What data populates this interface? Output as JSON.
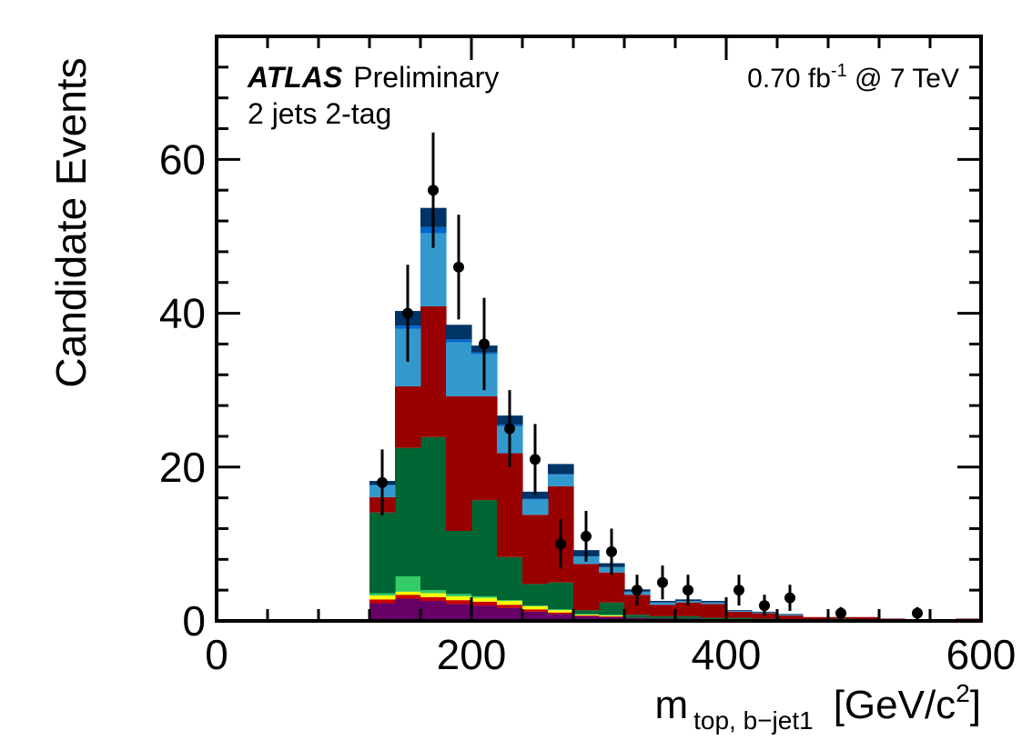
{
  "chart_data": {
    "type": "bar",
    "stacked": true,
    "bin_edges": [
      0,
      20,
      40,
      60,
      80,
      100,
      120,
      140,
      160,
      180,
      200,
      220,
      240,
      260,
      280,
      300,
      320,
      340,
      360,
      380,
      400,
      420,
      440,
      460,
      480,
      500,
      520,
      540,
      560,
      580,
      600
    ],
    "series": [
      {
        "name": "purple component",
        "color": "#660066",
        "values": [
          0,
          0,
          0,
          0,
          0,
          0,
          2.3,
          2.9,
          2.6,
          2.2,
          2.0,
          1.7,
          1.2,
          0.9,
          0.6,
          0.5,
          0.4,
          0.3,
          0.3,
          0.2,
          0.2,
          0.1,
          0.1,
          0.1,
          0.1,
          0.1,
          0,
          0,
          0,
          0
        ]
      },
      {
        "name": "red thin component",
        "color": "#cc0000",
        "values": [
          0,
          0,
          0,
          0,
          0,
          0,
          0.5,
          0.5,
          0.5,
          0.5,
          0.5,
          0.4,
          0.3,
          0.2,
          0.1,
          0.1,
          0,
          0,
          0,
          0,
          0,
          0,
          0,
          0,
          0,
          0,
          0,
          0,
          0,
          0
        ]
      },
      {
        "name": "yellow component",
        "color": "#ffff00",
        "values": [
          0,
          0,
          0,
          0,
          0,
          0,
          0.5,
          0.4,
          0.5,
          0.5,
          0.5,
          0.5,
          0.4,
          0.3,
          0.1,
          0.1,
          0,
          0,
          0,
          0,
          0,
          0,
          0,
          0,
          0,
          0,
          0,
          0,
          0,
          0
        ]
      },
      {
        "name": "light green component",
        "color": "#33cc66",
        "values": [
          0,
          0,
          0,
          0,
          0,
          0,
          0.3,
          2.0,
          0.4,
          0.3,
          0.2,
          0.1,
          0.1,
          0.1,
          0.1,
          0.1,
          0,
          0,
          0,
          0,
          0,
          0,
          0,
          0,
          0,
          0,
          0,
          0,
          0,
          0
        ]
      },
      {
        "name": "dark green component",
        "color": "#006633",
        "values": [
          0,
          0,
          0,
          0,
          0,
          0,
          10.5,
          16.7,
          19.9,
          8.2,
          12.5,
          5.6,
          2.8,
          3.5,
          0.5,
          1.6,
          0.4,
          0.3,
          0.3,
          0.2,
          0.2,
          0.2,
          0.1,
          0.1,
          0.2,
          0.1,
          0,
          0,
          0,
          0
        ]
      },
      {
        "name": "dark red component",
        "color": "#990000",
        "values": [
          0,
          0,
          0,
          0,
          0,
          0,
          2.0,
          8.0,
          17.0,
          17.5,
          13.5,
          13.5,
          9.0,
          12.5,
          6.0,
          3.9,
          2.6,
          1.5,
          1.8,
          1.8,
          0.8,
          0.7,
          0.5,
          0.3,
          0.2,
          0.3,
          0.3,
          0.2,
          0.2,
          0.3
        ]
      },
      {
        "name": "light blue component",
        "color": "#3399cc",
        "values": [
          0,
          0,
          0,
          0,
          0,
          0,
          1.5,
          7.5,
          9.5,
          7.0,
          5.5,
          3.5,
          2.0,
          1.5,
          1.0,
          0.7,
          0.4,
          0.3,
          0.2,
          0.2,
          0.1,
          0.1,
          0.1,
          0,
          0,
          0,
          0,
          0,
          0,
          0
        ]
      },
      {
        "name": "blue component",
        "color": "#0066cc",
        "values": [
          0,
          0,
          0,
          0,
          0,
          0,
          0.1,
          0.4,
          0.8,
          0.4,
          0.2,
          0.2,
          0.1,
          0.1,
          0,
          0,
          0,
          0,
          0,
          0,
          0,
          0,
          0,
          0,
          0,
          0,
          0,
          0,
          0,
          0
        ]
      },
      {
        "name": "dark navy component",
        "color": "#003366",
        "values": [
          0,
          0,
          0,
          0,
          0,
          0,
          0.5,
          1.9,
          2.5,
          1.9,
          0.9,
          1.2,
          0.9,
          1.3,
          0.8,
          0.5,
          0.3,
          0.2,
          0.2,
          0.2,
          0.1,
          0.1,
          0.1,
          0,
          0,
          0,
          0,
          0,
          0,
          0
        ]
      }
    ],
    "data_points": {
      "x": [
        130,
        150,
        170,
        190,
        210,
        230,
        250,
        270,
        290,
        310,
        330,
        350,
        370,
        410,
        430,
        450,
        490,
        550
      ],
      "y": [
        18,
        40,
        56,
        46,
        36,
        25,
        21,
        10,
        11,
        9,
        4,
        5,
        4,
        4,
        2,
        3,
        1,
        1
      ],
      "err": [
        4.3,
        6.3,
        7.5,
        6.8,
        6.0,
        5.0,
        4.6,
        3.2,
        3.3,
        3.0,
        2.0,
        2.2,
        2.0,
        2.0,
        1.4,
        1.7,
        0.8,
        0.8
      ]
    },
    "xlim": [
      0,
      600
    ],
    "ylim": [
      0,
      76
    ],
    "x_ticks": [
      0,
      200,
      400,
      600
    ],
    "y_ticks": [
      0,
      20,
      40,
      60
    ],
    "ylabel": "Candidate Events",
    "xlabel": {
      "main": "m",
      "subscript": "top, b−jet1",
      "unit_open": "[GeV/c",
      "unit_sup": "2",
      "unit_close": "]"
    },
    "annotations": {
      "experiment": "ATLAS",
      "status": "Preliminary",
      "selection": "2 jets 2-tag",
      "lumi_main": "0.70 fb",
      "lumi_sup": "-1",
      "lumi_rest": " @ 7 TeV"
    }
  }
}
